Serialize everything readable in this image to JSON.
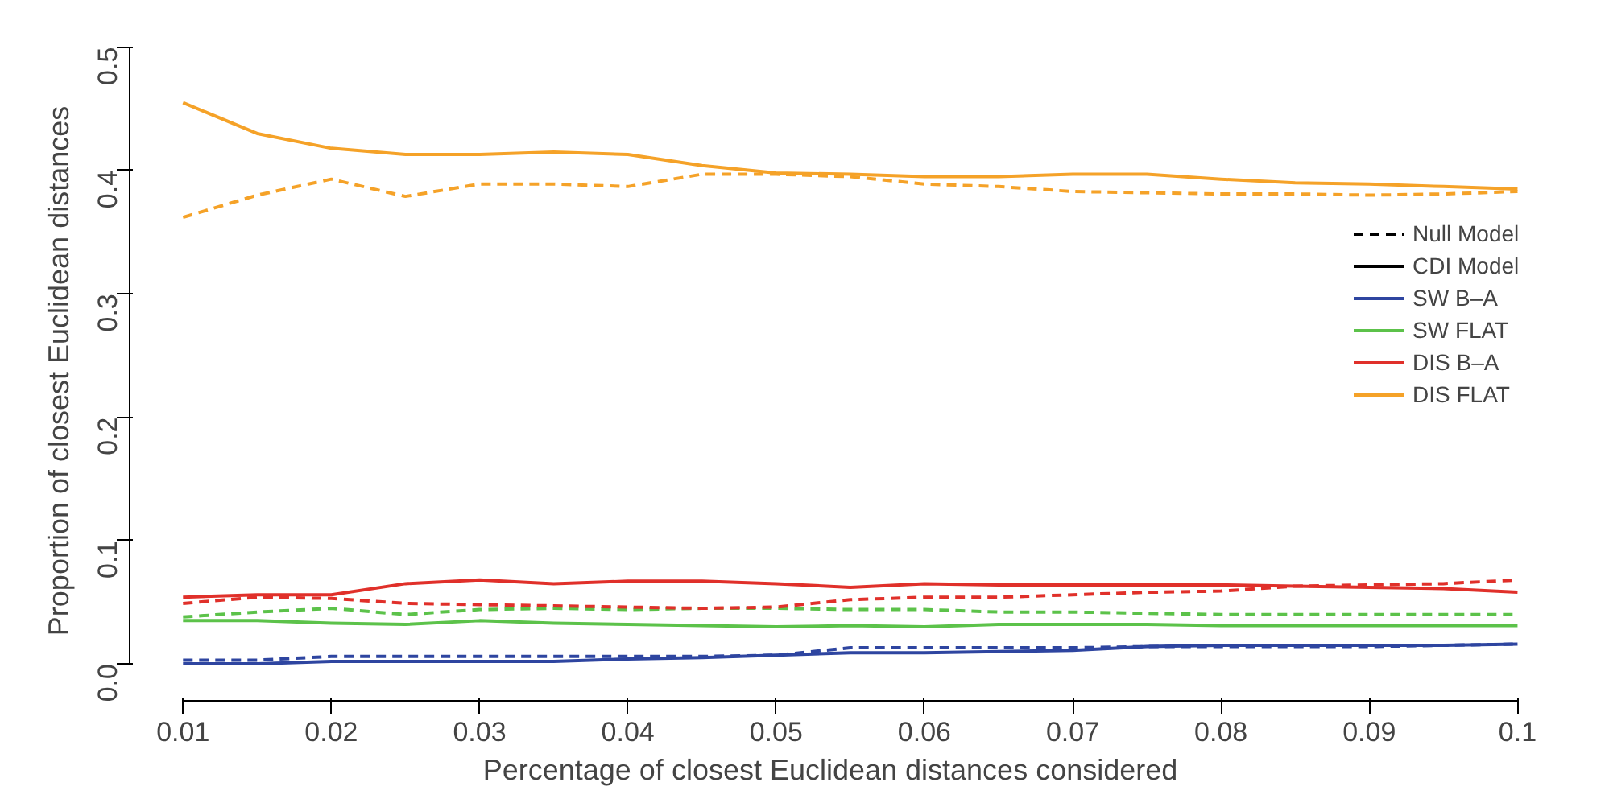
{
  "chart_data": {
    "type": "line",
    "xlabel": "Percentage of closest Euclidean distances considered",
    "ylabel": "Proportion of closest Euclidean distances",
    "x": [
      0.01,
      0.015,
      0.02,
      0.025,
      0.03,
      0.035,
      0.04,
      0.045,
      0.05,
      0.055,
      0.06,
      0.065,
      0.07,
      0.075,
      0.08,
      0.085,
      0.09,
      0.095,
      0.1
    ],
    "xlim": [
      0.01,
      0.1
    ],
    "ylim": [
      0,
      0.5
    ],
    "xticks": [
      0.01,
      0.02,
      0.03,
      0.04,
      0.05,
      0.06,
      0.07,
      0.08,
      0.09,
      0.1
    ],
    "yticks": [
      {
        "value": 0,
        "label": "0.0"
      },
      0.1,
      0.2,
      0.3,
      0.4,
      0.5
    ],
    "grid": false,
    "legend": "right",
    "marker": "none",
    "series": [
      {
        "name": "Null Model",
        "color": "#000000",
        "line_style": "dashed",
        "values": [
          null,
          null,
          null,
          null,
          null,
          null,
          null,
          null,
          null,
          null,
          null,
          null,
          null,
          null,
          null,
          null,
          null,
          null,
          null
        ]
      },
      {
        "name": "CDI Model",
        "color": "#000000",
        "line_style": "solid",
        "values": [
          null,
          null,
          null,
          null,
          null,
          null,
          null,
          null,
          null,
          null,
          null,
          null,
          null,
          null,
          null,
          null,
          null,
          null,
          null
        ]
      },
      {
        "name": "SW B–A",
        "color": "#2e45a0",
        "line_style": "solid",
        "values": [
          0.0,
          0.0,
          0.002,
          0.002,
          0.002,
          0.002,
          0.004,
          0.005,
          0.007,
          0.009,
          0.009,
          0.01,
          0.011,
          0.014,
          0.015,
          0.015,
          0.015,
          0.015,
          0.016
        ]
      },
      {
        "name": "SW FLAT",
        "color": "#5cc24a",
        "line_style": "solid",
        "values": [
          0.035,
          0.035,
          0.033,
          0.032,
          0.035,
          0.033,
          0.032,
          0.031,
          0.03,
          0.031,
          0.03,
          0.032,
          0.032,
          0.032,
          0.031,
          0.031,
          0.031,
          0.031,
          0.031
        ]
      },
      {
        "name": "DIS B–A",
        "color": "#e0302a",
        "line_style": "solid",
        "values": [
          0.054,
          0.056,
          0.056,
          0.065,
          0.068,
          0.065,
          0.067,
          0.067,
          0.065,
          0.062,
          0.065,
          0.064,
          0.064,
          0.064,
          0.064,
          0.063,
          0.062,
          0.061,
          0.058
        ]
      },
      {
        "name": "DIS FLAT",
        "color": "#f5a228",
        "line_style": "solid",
        "values": [
          0.455,
          0.43,
          0.418,
          0.413,
          0.413,
          0.415,
          0.413,
          0.404,
          0.398,
          0.397,
          0.395,
          0.395,
          0.397,
          0.397,
          0.393,
          0.39,
          0.389,
          0.387,
          0.385
        ]
      },
      {
        "color": "#2e45a0",
        "line_style": "dashed",
        "values": [
          0.003,
          0.003,
          0.006,
          0.006,
          0.006,
          0.006,
          0.006,
          0.006,
          0.007,
          0.013,
          0.013,
          0.013,
          0.013,
          0.014,
          0.014,
          0.014,
          0.014,
          0.015,
          0.016
        ]
      },
      {
        "color": "#5cc24a",
        "line_style": "dashed",
        "values": [
          0.038,
          0.042,
          0.045,
          0.04,
          0.044,
          0.045,
          0.044,
          0.045,
          0.045,
          0.044,
          0.044,
          0.042,
          0.042,
          0.041,
          0.04,
          0.04,
          0.04,
          0.04,
          0.04
        ]
      },
      {
        "color": "#e0302a",
        "line_style": "dashed",
        "values": [
          0.049,
          0.054,
          0.053,
          0.049,
          0.048,
          0.047,
          0.046,
          0.045,
          0.046,
          0.052,
          0.054,
          0.054,
          0.056,
          0.058,
          0.059,
          0.063,
          0.064,
          0.065,
          0.068
        ]
      },
      {
        "color": "#f5a228",
        "line_style": "dashed",
        "values": [
          0.362,
          0.38,
          0.393,
          0.379,
          0.389,
          0.389,
          0.387,
          0.397,
          0.397,
          0.395,
          0.389,
          0.387,
          0.383,
          0.382,
          0.381,
          0.381,
          0.38,
          0.381,
          0.383
        ]
      }
    ]
  }
}
